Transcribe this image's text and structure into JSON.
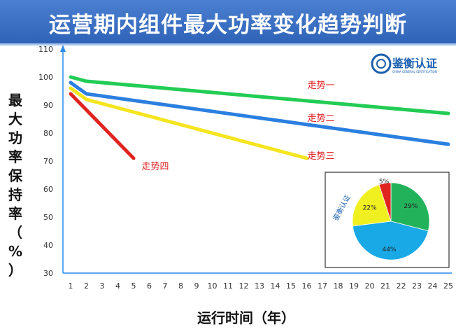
{
  "header": {
    "title": "运营期内组件最大功率变化趋势判断"
  },
  "logo": {
    "text": "鉴衡认证",
    "subtext": "CHINA GENERAL CERTIFICATION"
  },
  "chart_data": [
    {
      "type": "line",
      "title": "",
      "xlabel": "运行时间（年）",
      "ylabel": "最大功率保持率（%）",
      "xlim": [
        1,
        25
      ],
      "ylim": [
        30,
        110
      ],
      "yticks": [
        30,
        40,
        50,
        60,
        70,
        80,
        90,
        100,
        110
      ],
      "xticks": [
        1,
        2,
        3,
        4,
        5,
        6,
        7,
        8,
        9,
        10,
        11,
        12,
        13,
        14,
        15,
        16,
        17,
        18,
        19,
        20,
        21,
        22,
        23,
        24,
        25
      ],
      "grid": false,
      "series": [
        {
          "name": "走势一",
          "color": "#22cc55",
          "x": [
            1,
            2,
            25
          ],
          "y": [
            100,
            98.5,
            87
          ]
        },
        {
          "name": "走势二",
          "color": "#2b7fe0",
          "x": [
            1,
            2,
            25
          ],
          "y": [
            98,
            94,
            76
          ]
        },
        {
          "name": "走势三",
          "color": "#f5e51e",
          "x": [
            1,
            2,
            16
          ],
          "y": [
            96,
            92,
            71
          ]
        },
        {
          "name": "走势四",
          "color": "#e0241f",
          "x": [
            1,
            5
          ],
          "y": [
            94,
            71
          ]
        }
      ]
    },
    {
      "type": "pie",
      "slices": [
        {
          "label": "29%",
          "value": 29,
          "color": "#22b35a"
        },
        {
          "label": "44%",
          "value": 44,
          "color": "#19a9e6"
        },
        {
          "label": "22%",
          "value": 22,
          "color": "#f0f020"
        },
        {
          "label": "5%",
          "value": 5,
          "color": "#e0241f"
        }
      ],
      "watermark": "鉴衡认证"
    }
  ]
}
